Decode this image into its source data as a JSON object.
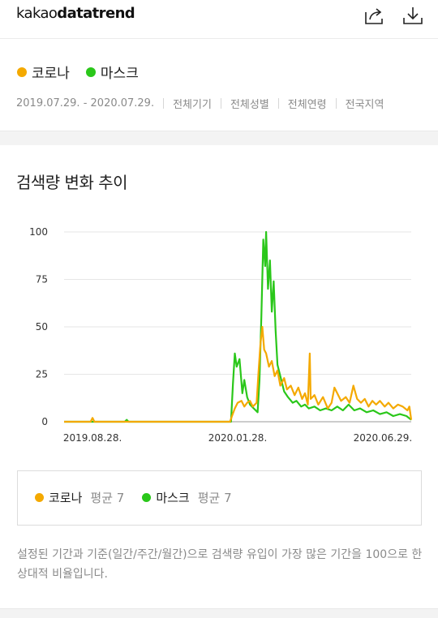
{
  "header": {
    "logo_light": "kakao",
    "logo_bold": "datatrend",
    "share_icon": "share-icon",
    "download_icon": "download-icon"
  },
  "filter": {
    "keywords": [
      {
        "label": "코로나",
        "color": "#f4a900"
      },
      {
        "label": "마스크",
        "color": "#2ac71a"
      }
    ],
    "period": "2019.07.29. - 2020.07.29.",
    "device": "전체기기",
    "gender": "전체성별",
    "age": "전체연령",
    "region": "전국지역"
  },
  "chart_section": {
    "title": "검색량 변화 추이"
  },
  "chart_data": {
    "type": "line",
    "x_ticks": [
      "2019.08.28.",
      "2020.01.28.",
      "2020.06.29."
    ],
    "y_ticks": [
      0,
      25,
      50,
      75,
      100
    ],
    "ylim": [
      0,
      100
    ],
    "grid": true,
    "series": [
      {
        "name": "코로나",
        "color": "#f4a900",
        "points": [
          [
            "2019.07.29",
            0
          ],
          [
            "2019.08.26",
            0
          ],
          [
            "2019.08.28",
            2
          ],
          [
            "2019.08.30",
            0
          ],
          [
            "2020.01.05",
            0
          ],
          [
            "2020.01.20",
            0
          ],
          [
            "2020.01.22",
            3
          ],
          [
            "2020.01.25",
            7
          ],
          [
            "2020.01.28",
            10
          ],
          [
            "2020.02.01",
            11
          ],
          [
            "2020.02.04",
            8
          ],
          [
            "2020.02.07",
            10
          ],
          [
            "2020.02.10",
            11
          ],
          [
            "2020.02.13",
            8
          ],
          [
            "2020.02.17",
            10
          ],
          [
            "2020.02.19",
            26
          ],
          [
            "2020.02.21",
            41
          ],
          [
            "2020.02.23",
            50
          ],
          [
            "2020.02.25",
            38
          ],
          [
            "2020.02.27",
            36
          ],
          [
            "2020.03.01",
            29
          ],
          [
            "2020.03.04",
            32
          ],
          [
            "2020.03.07",
            24
          ],
          [
            "2020.03.10",
            27
          ],
          [
            "2020.03.13",
            19
          ],
          [
            "2020.03.17",
            23
          ],
          [
            "2020.03.20",
            17
          ],
          [
            "2020.03.24",
            19
          ],
          [
            "2020.03.28",
            14
          ],
          [
            "2020.04.01",
            18
          ],
          [
            "2020.04.05",
            12
          ],
          [
            "2020.04.08",
            15
          ],
          [
            "2020.04.11",
            9
          ],
          [
            "2020.04.13",
            36
          ],
          [
            "2020.04.14",
            12
          ],
          [
            "2020.04.18",
            14
          ],
          [
            "2020.04.22",
            9
          ],
          [
            "2020.04.27",
            13
          ],
          [
            "2020.05.02",
            7
          ],
          [
            "2020.05.06",
            10
          ],
          [
            "2020.05.09",
            18
          ],
          [
            "2020.05.12",
            15
          ],
          [
            "2020.05.16",
            11
          ],
          [
            "2020.05.21",
            13
          ],
          [
            "2020.05.25",
            10
          ],
          [
            "2020.05.29",
            19
          ],
          [
            "2020.06.02",
            12
          ],
          [
            "2020.06.06",
            10
          ],
          [
            "2020.06.10",
            12
          ],
          [
            "2020.06.14",
            8
          ],
          [
            "2020.06.18",
            11
          ],
          [
            "2020.06.22",
            9
          ],
          [
            "2020.06.26",
            11
          ],
          [
            "2020.07.01",
            8
          ],
          [
            "2020.07.05",
            10
          ],
          [
            "2020.07.10",
            7
          ],
          [
            "2020.07.15",
            9
          ],
          [
            "2020.07.20",
            8
          ],
          [
            "2020.07.25",
            6
          ],
          [
            "2020.07.27",
            8
          ],
          [
            "2020.07.29",
            1
          ]
        ]
      },
      {
        "name": "마스크",
        "color": "#2ac71a",
        "points": [
          [
            "2019.07.29",
            0
          ],
          [
            "2019.10.01",
            0
          ],
          [
            "2019.10.03",
            1
          ],
          [
            "2019.10.05",
            0
          ],
          [
            "2020.01.10",
            0
          ],
          [
            "2020.01.21",
            0
          ],
          [
            "2020.01.23",
            20
          ],
          [
            "2020.01.25",
            36
          ],
          [
            "2020.01.27",
            29
          ],
          [
            "2020.01.30",
            33
          ],
          [
            "2020.02.02",
            15
          ],
          [
            "2020.02.04",
            22
          ],
          [
            "2020.02.07",
            13
          ],
          [
            "2020.02.10",
            9
          ],
          [
            "2020.02.14",
            7
          ],
          [
            "2020.02.18",
            5
          ],
          [
            "2020.02.20",
            22
          ],
          [
            "2020.02.22",
            55
          ],
          [
            "2020.02.24",
            96
          ],
          [
            "2020.02.26",
            82
          ],
          [
            "2020.02.27",
            100
          ],
          [
            "2020.02.29",
            70
          ],
          [
            "2020.03.02",
            85
          ],
          [
            "2020.03.04",
            58
          ],
          [
            "2020.03.06",
            74
          ],
          [
            "2020.03.08",
            48
          ],
          [
            "2020.03.10",
            30
          ],
          [
            "2020.03.14",
            22
          ],
          [
            "2020.03.17",
            16
          ],
          [
            "2020.03.21",
            13
          ],
          [
            "2020.03.26",
            10
          ],
          [
            "2020.03.30",
            11
          ],
          [
            "2020.04.04",
            8
          ],
          [
            "2020.04.08",
            9
          ],
          [
            "2020.04.12",
            7
          ],
          [
            "2020.04.18",
            8
          ],
          [
            "2020.04.24",
            6
          ],
          [
            "2020.04.30",
            7
          ],
          [
            "2020.05.06",
            6
          ],
          [
            "2020.05.12",
            8
          ],
          [
            "2020.05.18",
            6
          ],
          [
            "2020.05.24",
            9
          ],
          [
            "2020.05.30",
            6
          ],
          [
            "2020.06.05",
            7
          ],
          [
            "2020.06.12",
            5
          ],
          [
            "2020.06.19",
            6
          ],
          [
            "2020.06.26",
            4
          ],
          [
            "2020.07.03",
            5
          ],
          [
            "2020.07.10",
            3
          ],
          [
            "2020.07.17",
            4
          ],
          [
            "2020.07.24",
            3
          ],
          [
            "2020.07.29",
            1
          ]
        ]
      }
    ]
  },
  "averages": [
    {
      "name": "코로나",
      "color": "#f4a900",
      "avg_label": "평균 7"
    },
    {
      "name": "마스크",
      "color": "#2ac71a",
      "avg_label": "평균 7"
    }
  ],
  "description": "설정된 기간과 기준(일간/주간/월간)으로 검색량 유입이 가장 많은 기간을 100으로 한 상대적 비율입니다."
}
